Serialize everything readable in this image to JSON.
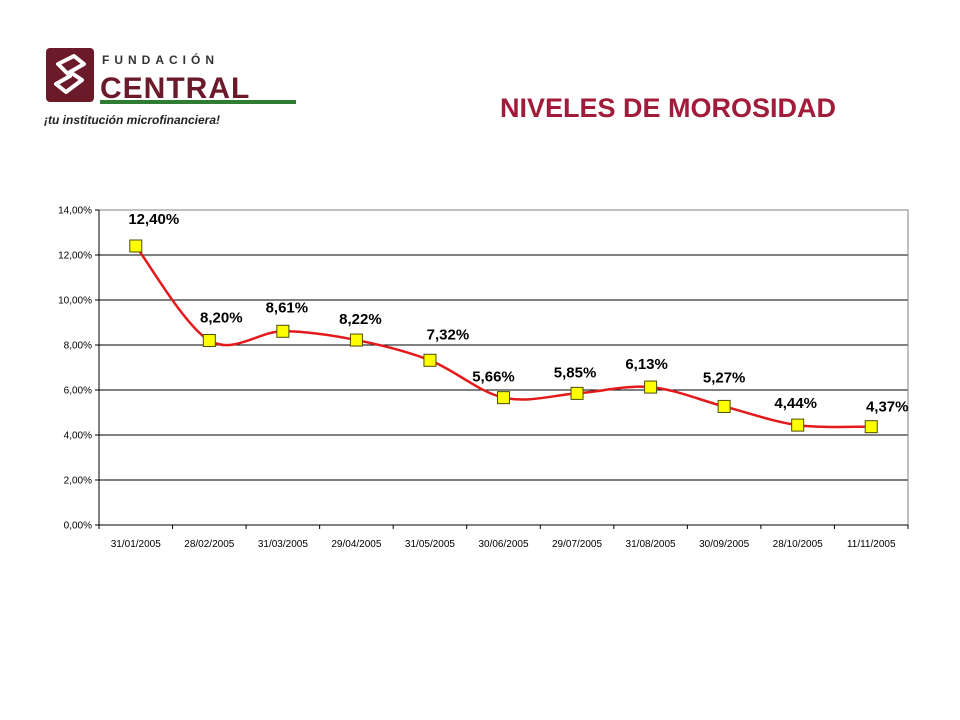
{
  "logo": {
    "top_text": "FUNDACIÓN",
    "main_text": "CENTRAL",
    "tagline": "¡tu institución microfinanciera!",
    "colors": {
      "maroon": "#6b1a2a",
      "green": "#2e7d32"
    }
  },
  "page_title": "NIVELES DE MOROSIDAD",
  "chart_data": {
    "type": "line",
    "title": "",
    "xlabel": "",
    "ylabel": "",
    "x": [
      "31/01/2005",
      "28/02/2005",
      "31/03/2005",
      "29/04/2005",
      "31/05/2005",
      "30/06/2005",
      "29/07/2005",
      "31/08/2005",
      "30/09/2005",
      "28/10/2005",
      "11/11/2005"
    ],
    "series": [
      {
        "values": [
          12.4,
          8.2,
          8.61,
          8.22,
          7.32,
          5.66,
          5.85,
          6.13,
          5.27,
          4.44,
          4.37
        ],
        "labels": [
          "12,40%",
          "8,20%",
          "8,61%",
          "8,22%",
          "7,32%",
          "5,66%",
          "5,85%",
          "6,13%",
          "5,27%",
          "4,44%",
          "4,37%"
        ]
      }
    ],
    "y_ticks": [
      "0,00%",
      "2,00%",
      "4,00%",
      "6,00%",
      "8,00%",
      "10,00%",
      "12,00%",
      "14,00%"
    ],
    "ylim": [
      0,
      14
    ],
    "grid": "horizontal",
    "legend": "none",
    "smooth": true,
    "colors": {
      "line": "#e31a1c",
      "marker_fill": "#ffff00",
      "marker_stroke": "#4d4d00",
      "grid": "#000000"
    }
  }
}
